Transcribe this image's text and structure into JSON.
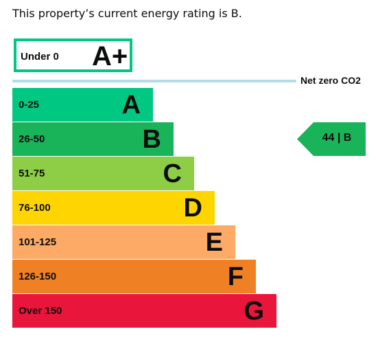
{
  "headline": "This property’s current energy rating is B.",
  "chart_data": {
    "type": "bar",
    "bands": [
      {
        "letter": "A+",
        "range": "Under 0",
        "color": "#00c781",
        "style": "outline"
      },
      {
        "letter": "A",
        "range": "0-25",
        "color": "#00c781"
      },
      {
        "letter": "B",
        "range": "26-50",
        "color": "#19b459"
      },
      {
        "letter": "C",
        "range": "51-75",
        "color": "#8dce46"
      },
      {
        "letter": "D",
        "range": "76-100",
        "color": "#ffd500"
      },
      {
        "letter": "E",
        "range": "101-125",
        "color": "#fcaa65"
      },
      {
        "letter": "F",
        "range": "126-150",
        "color": "#ef8023"
      },
      {
        "letter": "G",
        "range": "Over 150",
        "color": "#e9153b"
      }
    ],
    "net_zero_label": "Net zero CO2",
    "net_zero_line_color": "#b3dde5",
    "current": {
      "value": 44,
      "letter": "B",
      "label": "44 | B",
      "color": "#19b459"
    }
  }
}
